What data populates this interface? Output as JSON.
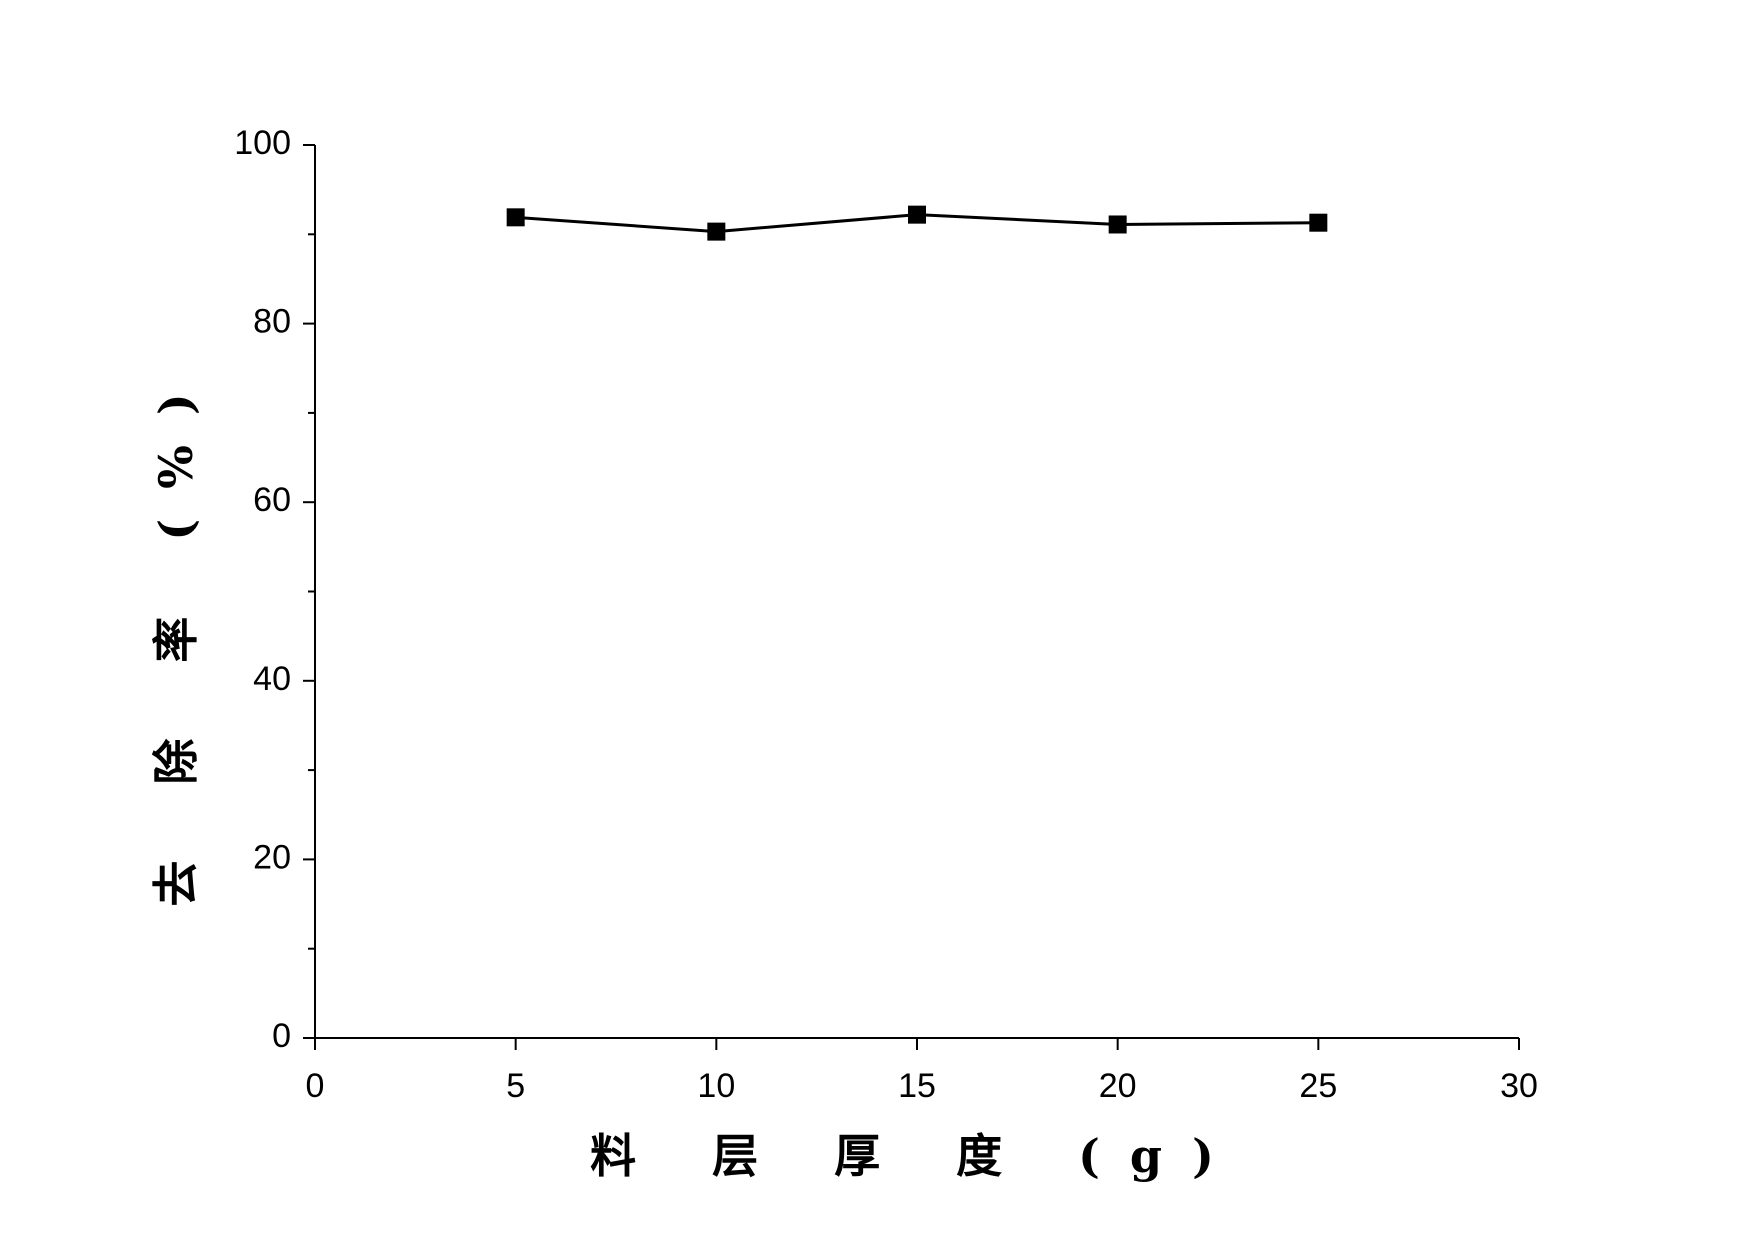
{
  "chart_data": {
    "type": "line",
    "x_label": "料 层 厚 度 (g)",
    "y_label": "去 除 率 (%)",
    "x": [
      5,
      10,
      15,
      20,
      25
    ],
    "values": [
      91.9,
      90.3,
      92.2,
      91.1,
      91.3
    ],
    "color": "#000000",
    "marker": "square",
    "xlim": [
      0,
      30
    ],
    "xticks": [
      0,
      5,
      10,
      15,
      20,
      25,
      30
    ],
    "ylim": [
      0,
      100
    ],
    "yticks": [
      0,
      20,
      40,
      60,
      80,
      100
    ],
    "yminorticks": [
      10,
      30,
      50,
      70,
      90
    ],
    "grid": false
  }
}
